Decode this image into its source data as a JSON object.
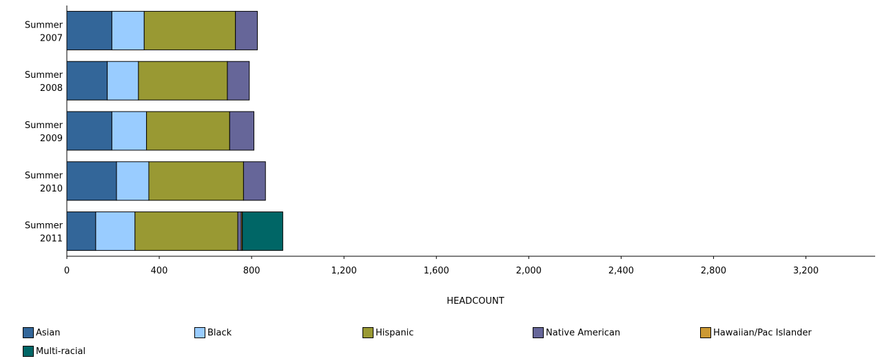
{
  "chart_data": {
    "type": "bar",
    "orientation": "horizontal",
    "stacked": true,
    "title": "",
    "xlabel": "HEADCOUNT",
    "ylabel": "",
    "xlim": [
      0,
      3500
    ],
    "x_ticks": [
      0,
      400,
      800,
      1200,
      1600,
      2000,
      2400,
      2800,
      3200
    ],
    "x_tick_labels": [
      "0",
      "400",
      "800",
      "1,200",
      "1,600",
      "2,000",
      "2,400",
      "2,800",
      "3,200"
    ],
    "categories": [
      [
        "Summer",
        "2007"
      ],
      [
        "Summer",
        "2008"
      ],
      [
        "Summer",
        "2009"
      ],
      [
        "Summer",
        "2010"
      ],
      [
        "Summer",
        "2011"
      ]
    ],
    "series": [
      {
        "name": "Asian",
        "color": "#336699",
        "values": [
          195,
          175,
          195,
          215,
          125
        ]
      },
      {
        "name": "Black",
        "color": "#99ccff",
        "values": [
          140,
          135,
          150,
          140,
          170
        ]
      },
      {
        "name": "Hispanic",
        "color": "#999933",
        "values": [
          395,
          385,
          360,
          410,
          445
        ]
      },
      {
        "name": "Native American",
        "color": "#666699",
        "values": [
          95,
          95,
          105,
          95,
          15
        ]
      },
      {
        "name": "Hawaiian/Pac Islander",
        "color": "#cc9933",
        "values": [
          0,
          0,
          0,
          0,
          5
        ]
      },
      {
        "name": "Multi-racial",
        "color": "#006666",
        "values": [
          0,
          0,
          0,
          0,
          175
        ]
      }
    ],
    "grid": false,
    "legend_position": "bottom"
  }
}
